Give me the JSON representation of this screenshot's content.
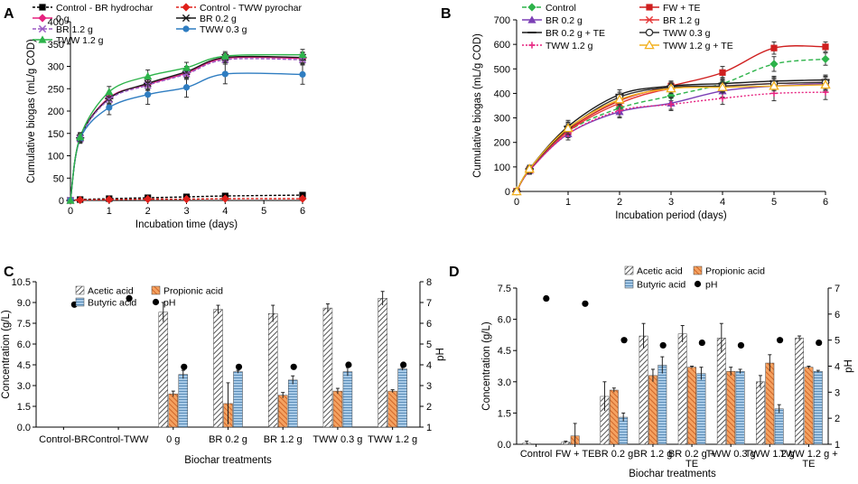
{
  "chart_data": [
    {
      "type": "line",
      "panel": "A",
      "title": "",
      "xlabel": "Incubation time (days)",
      "ylabel": "Cumulative biogas (mL/g COD)",
      "xlim": [
        0,
        6
      ],
      "ylim": [
        0,
        400
      ],
      "x_ticks": [
        0,
        1,
        2,
        3,
        4,
        5,
        6
      ],
      "y_ticks": [
        0,
        50,
        100,
        150,
        200,
        250,
        300,
        350,
        400
      ],
      "x": [
        0,
        0.25,
        1,
        2,
        3,
        4,
        6
      ],
      "series": [
        {
          "name": "Control - BR hydrochar",
          "color": "#000000",
          "marker": "square",
          "dash": "3,2",
          "values": [
            0,
            2,
            4,
            6,
            8,
            10,
            12
          ],
          "errors": [
            0,
            1,
            1,
            2,
            2,
            2,
            2
          ]
        },
        {
          "name": "Control - TWW pyrochar",
          "color": "#e0201b",
          "marker": "diamond",
          "dash": "3,2",
          "values": [
            0,
            1,
            2,
            3,
            3,
            4,
            4
          ],
          "errors": [
            0,
            1,
            1,
            1,
            1,
            1,
            1
          ]
        },
        {
          "name": "0 g",
          "color": "#e6217f",
          "marker": "diamond",
          "dash": "",
          "values": [
            0,
            140,
            230,
            260,
            285,
            318,
            318
          ],
          "errors": [
            0,
            10,
            12,
            12,
            12,
            10,
            12
          ]
        },
        {
          "name": "BR 0.2 g",
          "color": "#1a1a1a",
          "marker": "star",
          "dash": "",
          "values": [
            0,
            140,
            228,
            262,
            288,
            320,
            320
          ],
          "errors": [
            0,
            10,
            12,
            12,
            12,
            10,
            12
          ]
        },
        {
          "name": "BR 1.2 g",
          "color": "#9b59c4",
          "marker": "x",
          "dash": "4,2",
          "values": [
            0,
            138,
            226,
            258,
            283,
            315,
            315
          ],
          "errors": [
            0,
            10,
            12,
            12,
            12,
            10,
            12
          ]
        },
        {
          "name": "TWW 0.3 g",
          "color": "#2f7dc1",
          "marker": "circle",
          "dash": "",
          "values": [
            0,
            138,
            208,
            237,
            253,
            283,
            282
          ],
          "errors": [
            0,
            10,
            16,
            22,
            22,
            22,
            22
          ]
        },
        {
          "name": "TWW 1.2 g",
          "color": "#2db34a",
          "marker": "triangle",
          "dash": "",
          "values": [
            0,
            142,
            243,
            278,
            297,
            323,
            326
          ],
          "errors": [
            0,
            10,
            12,
            14,
            12,
            10,
            12
          ]
        }
      ]
    },
    {
      "type": "line",
      "panel": "B",
      "title": "",
      "xlabel": "Incubation period (days)",
      "ylabel": "Cumulative biogas (mL/g COD)",
      "xlim": [
        0,
        6
      ],
      "ylim": [
        0,
        700
      ],
      "x_ticks": [
        0,
        1,
        2,
        3,
        4,
        5,
        6
      ],
      "y_ticks": [
        0,
        100,
        200,
        300,
        400,
        500,
        600,
        700
      ],
      "x": [
        0,
        0.25,
        1,
        2,
        3,
        4,
        5,
        6
      ],
      "series": [
        {
          "name": "Control",
          "color": "#2db34a",
          "marker": "diamond",
          "dash": "5,3",
          "values": [
            0,
            90,
            245,
            340,
            390,
            440,
            520,
            540
          ],
          "errors": [
            0,
            15,
            25,
            20,
            20,
            25,
            30,
            25
          ]
        },
        {
          "name": "FW + TE",
          "color": "#cf1f1f",
          "marker": "square",
          "dash": "",
          "values": [
            0,
            88,
            250,
            370,
            430,
            485,
            585,
            590
          ],
          "errors": [
            0,
            15,
            25,
            20,
            20,
            25,
            25,
            20
          ]
        },
        {
          "name": "BR 0.2 g",
          "color": "#7b3fb5",
          "marker": "triangle",
          "dash": "",
          "values": [
            0,
            85,
            235,
            325,
            360,
            410,
            430,
            440
          ],
          "errors": [
            0,
            15,
            25,
            25,
            25,
            25,
            30,
            30
          ]
        },
        {
          "name": "BR 1.2 g",
          "color": "#e63a3a",
          "marker": "star",
          "dash": "",
          "values": [
            0,
            88,
            245,
            360,
            420,
            430,
            440,
            445
          ],
          "errors": [
            0,
            15,
            25,
            20,
            20,
            25,
            25,
            25
          ]
        },
        {
          "name": "BR 0.2 g + TE",
          "color": "#1a1a1a",
          "marker": "dash",
          "dash": "",
          "values": [
            0,
            92,
            265,
            395,
            430,
            440,
            450,
            455
          ],
          "errors": [
            0,
            15,
            25,
            20,
            20,
            20,
            20,
            20
          ]
        },
        {
          "name": "TWW 0.3 g",
          "color": "#333333",
          "marker": "circle-open",
          "dash": "",
          "values": [
            0,
            90,
            255,
            385,
            425,
            430,
            440,
            445
          ],
          "errors": [
            0,
            15,
            25,
            20,
            20,
            20,
            20,
            20
          ]
        },
        {
          "name": "TWW 1.2 g",
          "color": "#e6217f",
          "marker": "plus",
          "dash": "2,2",
          "values": [
            0,
            85,
            235,
            330,
            355,
            380,
            400,
            405
          ],
          "errors": [
            0,
            15,
            25,
            25,
            25,
            25,
            30,
            30
          ]
        },
        {
          "name": "TWW 1.2 g + TE",
          "color": "#f2b01e",
          "marker": "triangle-open",
          "dash": "",
          "values": [
            0,
            92,
            258,
            375,
            420,
            425,
            430,
            435
          ],
          "errors": [
            0,
            15,
            25,
            20,
            20,
            20,
            20,
            20
          ]
        }
      ]
    },
    {
      "type": "bar",
      "panel": "C",
      "xlabel": "Biochar treatments",
      "ylabel": "Concentration (g/L)",
      "y2label": "pH",
      "ylim": [
        0,
        10.5
      ],
      "y_ticks": [
        "0.0",
        "1.5",
        "3.0",
        "4.5",
        "6.0",
        "7.5",
        "9.0",
        "10.5"
      ],
      "y2lim": [
        1,
        8
      ],
      "y2_ticks": [
        1,
        2,
        3,
        4,
        5,
        6,
        7,
        8
      ],
      "categories": [
        "Control-BR",
        "Control-TWW",
        "0 g",
        "BR 0.2 g",
        "BR 1.2 g",
        "TWW 0.3 g",
        "TWW 1.2 g"
      ],
      "series": [
        {
          "name": "Acetic acid",
          "pattern": "hatch-gray",
          "values": [
            0,
            0,
            8.3,
            8.5,
            8.2,
            8.6,
            9.3
          ],
          "errors": [
            0,
            0,
            0.7,
            0.3,
            0.6,
            0.3,
            0.5
          ]
        },
        {
          "name": "Propionic acid",
          "pattern": "hatch-orange",
          "values": [
            0,
            0,
            2.4,
            1.7,
            2.3,
            2.6,
            2.6
          ],
          "errors": [
            0,
            0,
            0.2,
            1.5,
            0.2,
            0.2,
            0.1
          ]
        },
        {
          "name": "Butyric acid",
          "pattern": "hatch-blue",
          "values": [
            0,
            0,
            3.8,
            4.0,
            3.4,
            4.0,
            4.2
          ],
          "errors": [
            0,
            0,
            0.3,
            0.1,
            0.3,
            0.3,
            0.1
          ]
        }
      ],
      "ph": {
        "name": "pH",
        "values": [
          6.9,
          7.2,
          3.9,
          3.9,
          3.9,
          4.0,
          4.0
        ]
      }
    },
    {
      "type": "bar",
      "panel": "D",
      "xlabel": "Biochar treatments",
      "ylabel": "Concentration (g/L)",
      "y2label": "pH",
      "ylim": [
        0,
        7.5
      ],
      "y_ticks": [
        "0.0",
        "1.5",
        "3.0",
        "4.5",
        "6.0",
        "7.5"
      ],
      "y2lim": [
        1,
        7
      ],
      "y2_ticks": [
        1,
        2,
        3,
        4,
        5,
        6,
        7
      ],
      "categories": [
        "Control",
        "FW + TE",
        "BR 0.2 g",
        "BR 1.2 g",
        "BR 0.2 g + TE",
        "TWW 0.3 g",
        "TWW 1.2 g",
        "TWW 1.2 g + TE"
      ],
      "series": [
        {
          "name": "Acetic acid",
          "pattern": "hatch-gray",
          "values": [
            0.05,
            0.1,
            2.3,
            5.2,
            5.3,
            5.1,
            3.0,
            5.1
          ],
          "errors": [
            0.1,
            0.05,
            0.7,
            0.6,
            0.4,
            0.7,
            0.3,
            0.1
          ]
        },
        {
          "name": "Propionic acid",
          "pattern": "hatch-orange",
          "values": [
            0,
            0.4,
            2.6,
            3.3,
            3.7,
            3.5,
            3.9,
            3.7
          ],
          "errors": [
            0,
            0.6,
            0.1,
            0.3,
            0.05,
            0.2,
            0.4,
            0.05
          ]
        },
        {
          "name": "Butyric acid",
          "pattern": "hatch-blue",
          "values": [
            0,
            0,
            1.3,
            3.8,
            3.4,
            3.5,
            1.7,
            3.5
          ],
          "errors": [
            0,
            0,
            0.2,
            0.4,
            0.3,
            0.1,
            0.2,
            0.05
          ]
        }
      ],
      "ph": {
        "name": "pH",
        "values": [
          6.6,
          6.4,
          5.0,
          4.8,
          4.9,
          4.8,
          5.0,
          4.9
        ]
      }
    }
  ]
}
